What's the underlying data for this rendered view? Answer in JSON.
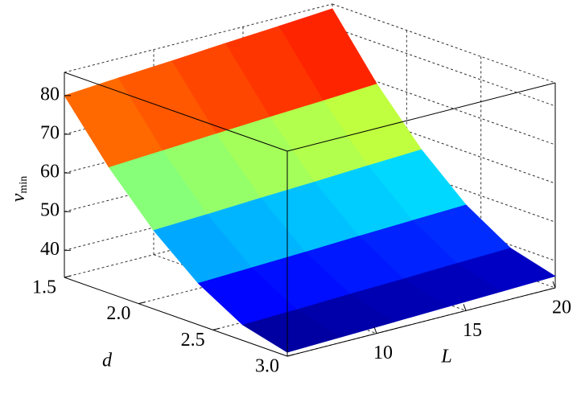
{
  "chart_data": {
    "type": "surface",
    "xlabel": "L",
    "ylabel": "d",
    "zlabel": {
      "text": "v",
      "subscript": "min"
    },
    "x": [
      5,
      8,
      11,
      14,
      17,
      20
    ],
    "y": [
      1.5,
      1.8,
      2.1,
      2.4,
      2.7,
      3.0
    ],
    "z": [
      [
        80,
        81.0,
        81.9,
        82.9,
        83.8,
        84.8
      ],
      [
        65.5,
        66.3,
        67.1,
        67.9,
        68.6,
        69.4
      ],
      [
        53.3,
        53.9,
        54.6,
        55.2,
        55.9,
        56.5
      ],
      [
        43.7,
        44.2,
        44.7,
        45.3,
        45.8,
        46.3
      ],
      [
        37.0,
        37.4,
        37.9,
        38.3,
        38.8,
        39.2
      ],
      [
        34,
        34.4,
        34.8,
        35.2,
        35.6,
        36.0
      ]
    ],
    "xlim": [
      5,
      20
    ],
    "ylim": [
      1.5,
      3.0
    ],
    "zlim": [
      33,
      86
    ],
    "xticks": [
      10,
      15,
      20
    ],
    "yticks": [
      1.5,
      {
        "value": 2,
        "label": "2.0"
      },
      2.5,
      {
        "value": 3,
        "label": "3.0"
      }
    ],
    "zticks": [
      40,
      50,
      60,
      70,
      80
    ],
    "colormap": "jet",
    "grid": true
  }
}
